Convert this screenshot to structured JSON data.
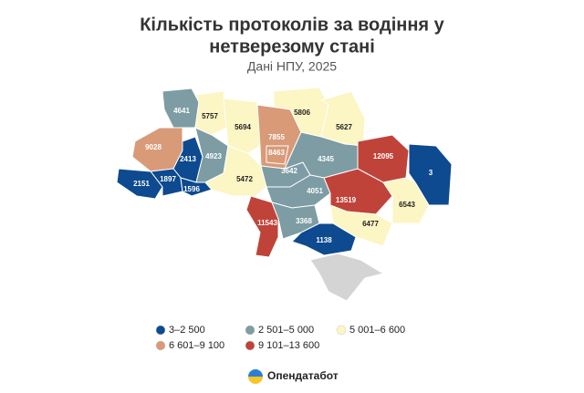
{
  "title": [
    "Кількість протоколів за водіння у",
    "нетверезому стані"
  ],
  "subtitle": "Дані НПУ, 2025",
  "regions": [
    {
      "value": 4641,
      "color": "#7d9ca3"
    },
    {
      "value": 5757,
      "color": "#fcf5c4"
    },
    {
      "value": 5694,
      "color": "#fcf5c4"
    },
    {
      "value": 5806,
      "color": "#fcf5c4"
    },
    {
      "value": 5627,
      "color": "#fcf5c4"
    },
    {
      "value": 7855,
      "color": "#d99a78"
    },
    {
      "value": 8463,
      "color": "#d99a78"
    },
    {
      "value": 9028,
      "color": "#d99a78"
    },
    {
      "value": 2413,
      "color": "#0d4a8f"
    },
    {
      "value": 4923,
      "color": "#7d9ca3"
    },
    {
      "value": 1897,
      "color": "#0d4a8f"
    },
    {
      "value": 2151,
      "color": "#0d4a8f"
    },
    {
      "value": 1596,
      "color": "#0d4a8f"
    },
    {
      "value": 5472,
      "color": "#fcf5c4"
    },
    {
      "value": 3642,
      "color": "#7d9ca3"
    },
    {
      "value": 4345,
      "color": "#7d9ca3"
    },
    {
      "value": 12095,
      "color": "#c0433a"
    },
    {
      "value": 3,
      "color": "#0d4a8f"
    },
    {
      "value": 4051,
      "color": "#7d9ca3"
    },
    {
      "value": 13519,
      "color": "#c0433a"
    },
    {
      "value": 6543,
      "color": "#fcf5c4"
    },
    {
      "value": 11543,
      "color": "#c0433a"
    },
    {
      "value": 3368,
      "color": "#7d9ca3"
    },
    {
      "value": 6477,
      "color": "#fcf5c4"
    },
    {
      "value": 1138,
      "color": "#0d4a8f"
    }
  ],
  "legend": [
    {
      "label": "3–2 500",
      "color": "#0d4a8f"
    },
    {
      "label": "2 501–5 000",
      "color": "#7d9ca3"
    },
    {
      "label": "5 001–6 600",
      "color": "#fcf5c4"
    },
    {
      "label": "6 601–9 100",
      "color": "#d99a78"
    },
    {
      "label": "9 101–13 600",
      "color": "#c0433a"
    }
  ],
  "brand": "Опендатабот"
}
